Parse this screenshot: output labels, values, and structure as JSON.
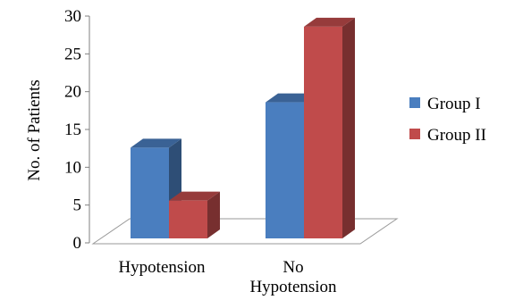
{
  "chart_data": {
    "type": "bar",
    "categories": [
      [
        "Hypotension"
      ],
      [
        "No",
        "Hypotension"
      ]
    ],
    "series": [
      {
        "name": "Group I",
        "values": [
          12,
          18
        ],
        "color": "#4a7ebf"
      },
      {
        "name": "Group II",
        "values": [
          5,
          28
        ],
        "color": "#c04b4b"
      }
    ],
    "ylabel": "No. of Patients",
    "xlabel": "",
    "title": "",
    "ylim": [
      0,
      30
    ],
    "yticks": [
      0,
      5,
      10,
      15,
      20,
      25,
      30
    ],
    "grid": false,
    "legend_position": "right",
    "style": "3d-clustered"
  }
}
